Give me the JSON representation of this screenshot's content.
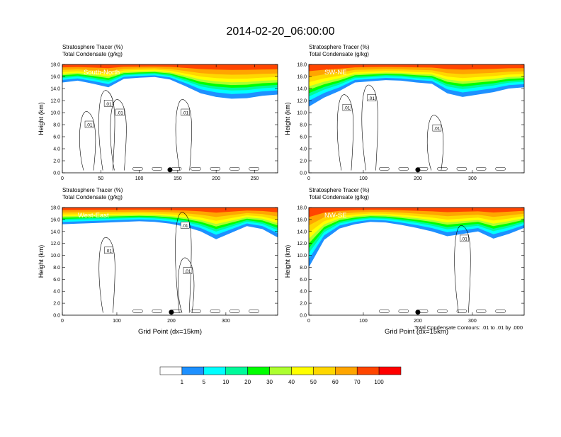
{
  "figure": {
    "title": "2014-02-20_06:00:00",
    "footnote": "Total Condensate Contours: .01 to .01 by .000"
  },
  "colorbar": {
    "colors": [
      "#ffffff",
      "#1e90ff",
      "#00ffff",
      "#00fa9a",
      "#00ff00",
      "#adff2f",
      "#ffff00",
      "#ffd700",
      "#ffa500",
      "#ff4500",
      "#ff0000"
    ],
    "labels": [
      "1",
      "5",
      "10",
      "20",
      "30",
      "40",
      "50",
      "60",
      "70",
      "100"
    ]
  },
  "chart_data": [
    {
      "type": "heatmap",
      "panel_label": "South-North",
      "title_line1": "Stratosphere Tracer   (%)",
      "title_line2": "Total Condensate   (g/kg)",
      "ylabel": "Height (km)",
      "xlabel": "",
      "xlim": [
        0,
        280
      ],
      "ylim": [
        0,
        18
      ],
      "xticks": [
        "0",
        "50",
        "100",
        "150",
        "200",
        "250"
      ],
      "xtick_values": [
        0,
        50,
        100,
        150,
        200,
        250
      ],
      "yticks": [
        "0.0",
        "2.0",
        "4.0",
        "6.0",
        "8.0",
        "10.0",
        "12.0",
        "14.0",
        "16.0",
        "18.0"
      ],
      "contour_labels": [
        ".01",
        ".01",
        ".01",
        ".01"
      ],
      "contour_label_positions": [
        [
          60,
          11.5
        ],
        [
          75,
          10
        ],
        [
          160,
          10
        ],
        [
          35,
          8
        ]
      ],
      "marker_x": 140,
      "tracer_top_km": 18,
      "tracer_base_km": [
        15.0,
        15.3,
        14.8,
        14.2,
        15.6,
        15.8,
        15.9,
        15.5,
        14.4,
        13.2,
        12.6,
        12.3,
        12.4,
        12.8,
        13.0
      ]
    },
    {
      "type": "heatmap",
      "panel_label": "SW-NE",
      "title_line1": "Stratosphere Tracer   (%)",
      "title_line2": "Total Condensate   (g/kg)",
      "ylabel": "Height (km)",
      "xlabel": "",
      "xlim": [
        0,
        395
      ],
      "ylim": [
        0,
        18
      ],
      "xticks": [
        "0",
        "100",
        "200",
        "300"
      ],
      "xtick_values": [
        0,
        100,
        200,
        300
      ],
      "yticks": [
        "0.0",
        "2.0",
        "4.0",
        "6.0",
        "8.0",
        "10.0",
        "12.0",
        "14.0",
        "16.0",
        "18.0"
      ],
      "contour_labels": [
        ".01",
        ".01",
        ".01"
      ],
      "contour_label_positions": [
        [
          70,
          10.8
        ],
        [
          115,
          12.4
        ],
        [
          235,
          7.4
        ]
      ],
      "marker_x": 200,
      "tracer_top_km": 18,
      "tracer_base_km": [
        11.0,
        12.5,
        13.6,
        15.0,
        15.2,
        15.4,
        15.3,
        15.0,
        14.8,
        13.2,
        12.6,
        13.0,
        13.4,
        14.0,
        14.2
      ]
    },
    {
      "type": "heatmap",
      "panel_label": "West-East",
      "title_line1": "Stratosphere Tracer   (%)",
      "title_line2": "Total Condensate   (g/kg)",
      "ylabel": "Height (km)",
      "xlabel": "Grid Point (dx=15km)",
      "xlim": [
        0,
        395
      ],
      "ylim": [
        0,
        18
      ],
      "xticks": [
        "0",
        "100",
        "200",
        "300"
      ],
      "xtick_values": [
        0,
        100,
        200,
        300
      ],
      "yticks": [
        "0.0",
        "2.0",
        "4.0",
        "6.0",
        "8.0",
        "10.0",
        "12.0",
        "14.0",
        "16.0",
        "18.0"
      ],
      "contour_labels": [
        ".01",
        ".01",
        ".01"
      ],
      "contour_label_positions": [
        [
          85,
          10.8
        ],
        [
          225,
          15
        ],
        [
          230,
          7.4
        ]
      ],
      "marker_x": 200,
      "tracer_top_km": 18,
      "tracer_base_km": [
        15.2,
        15.3,
        15.4,
        15.5,
        15.6,
        15.7,
        15.6,
        15.3,
        14.8,
        14.0,
        12.7,
        13.8,
        14.9,
        14.4,
        13.0
      ]
    },
    {
      "type": "heatmap",
      "panel_label": "NW-SE",
      "title_line1": "Stratosphere Tracer   (%)",
      "title_line2": "Total Condensate   (g/kg)",
      "ylabel": "Height (km)",
      "xlabel": "Grid Point (dx=15km)",
      "xlim": [
        0,
        395
      ],
      "ylim": [
        0,
        18
      ],
      "xticks": [
        "0",
        "100",
        "200",
        "300"
      ],
      "xtick_values": [
        0,
        100,
        200,
        300
      ],
      "yticks": [
        "0.0",
        "2.0",
        "4.0",
        "6.0",
        "8.0",
        "10.0",
        "12.0",
        "14.0",
        "16.0",
        "18.0"
      ],
      "contour_labels": [
        ".01"
      ],
      "contour_label_positions": [
        [
          285,
          12.8
        ]
      ],
      "marker_x": 200,
      "tracer_top_km": 18,
      "tracer_base_km": [
        8.0,
        12.6,
        14.5,
        15.2,
        15.6,
        15.5,
        15.1,
        14.6,
        14.0,
        13.2,
        13.6,
        14.0,
        12.8,
        13.6,
        14.6
      ]
    }
  ]
}
